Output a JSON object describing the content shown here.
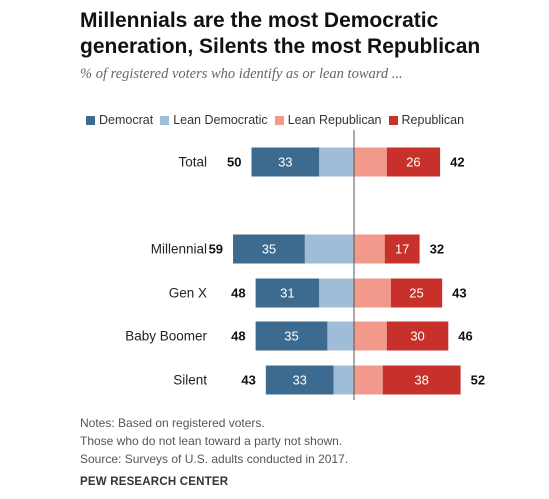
{
  "title": "Millennials are the most Democratic generation, Silents the most Republican",
  "subtitle": "% of registered voters who identify as or lean toward ...",
  "colors": {
    "democrat": "#3d6a8f",
    "lean_democratic": "#9fbdd6",
    "lean_republican": "#f19a8c",
    "republican": "#c7302b"
  },
  "legend": [
    {
      "label": "Democrat",
      "color": "#3d6a8f"
    },
    {
      "label": "Lean Democratic",
      "color": "#9fbdd6"
    },
    {
      "label": "Lean Republican",
      "color": "#f19a8c"
    },
    {
      "label": "Republican",
      "color": "#c7302b"
    }
  ],
  "chart_data": {
    "type": "bar",
    "orientation": "horizontal-diverging",
    "categories": [
      "Total",
      "Millennial",
      "Gen X",
      "Baby Boomer",
      "Silent"
    ],
    "series": [
      {
        "name": "Democrat",
        "values": [
          33,
          35,
          31,
          35,
          33
        ]
      },
      {
        "name": "Lean Democratic",
        "values": [
          17,
          24,
          17,
          13,
          10
        ]
      },
      {
        "name": "Lean Republican",
        "values": [
          16,
          15,
          18,
          16,
          14
        ]
      },
      {
        "name": "Republican",
        "values": [
          26,
          17,
          25,
          30,
          38
        ]
      }
    ],
    "dem_totals": [
      50,
      59,
      48,
      48,
      43
    ],
    "rep_totals": [
      42,
      32,
      43,
      46,
      52
    ],
    "grid": false
  },
  "notes": [
    "Notes: Based on registered voters.",
    "Those who do not lean toward a party not shown.",
    "Source: Surveys of U.S. adults conducted in 2017."
  ],
  "source_org": "PEW RESEARCH CENTER"
}
